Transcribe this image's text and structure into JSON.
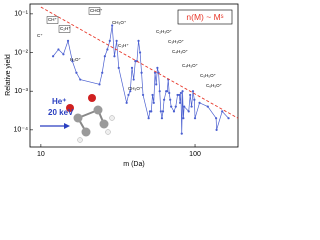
{
  "chart_data": {
    "type": "line",
    "xlabel": "m (Da)",
    "ylabel": "Relative yield",
    "xscale": "log",
    "yscale": "log",
    "xlim": [
      8.5,
      190
    ],
    "ylim": [
      3.6e-05,
      0.18
    ],
    "xticks": [
      10,
      100
    ],
    "yticks": [
      {
        "value": 0.1,
        "label": "10⁻¹"
      },
      {
        "value": 0.01,
        "label": "10⁻²"
      },
      {
        "value": 0.001,
        "label": "10⁻³"
      },
      {
        "value": 0.0001,
        "label": "10⁻⁴"
      }
    ],
    "series": [
      {
        "color": "#4a5fd0",
        "style": "solid-markers",
        "x": [
          12,
          13,
          14,
          15,
          16,
          17,
          18,
          24,
          25,
          26,
          27,
          28,
          29,
          30,
          31,
          32,
          36,
          37,
          38,
          39,
          40,
          41,
          42,
          43,
          44,
          45,
          46,
          50,
          51,
          52,
          53,
          54,
          55,
          56,
          57,
          58,
          59,
          60,
          61,
          62,
          63,
          65,
          66,
          67,
          68,
          69,
          70,
          73,
          75,
          77,
          79,
          80,
          81,
          82,
          83,
          84,
          85,
          91,
          93,
          95,
          97,
          99,
          100,
          107,
          121,
          137,
          138,
          150,
          165
        ],
        "values": [
          0.008,
          0.012,
          0.009,
          0.02,
          0.006,
          0.003,
          0.002,
          0.0015,
          0.003,
          0.008,
          0.012,
          0.02,
          0.05,
          0.008,
          0.02,
          0.004,
          0.0005,
          0.0008,
          0.001,
          0.004,
          0.002,
          0.006,
          0.006,
          0.02,
          0.01,
          0.003,
          0.0008,
          0.0002,
          0.0003,
          0.0003,
          0.0008,
          0.0005,
          0.003,
          0.0015,
          0.004,
          0.003,
          0.001,
          0.0003,
          0.0002,
          0.0003,
          0.0006,
          0.001,
          0.001,
          0.002,
          0.0009,
          0.0006,
          0.0004,
          0.0003,
          0.0004,
          0.0008,
          0.0008,
          0.0005,
          0.0009,
          8e-05,
          0.001,
          0.0002,
          0.0004,
          0.0003,
          0.0008,
          0.0004,
          0.001,
          0.0006,
          0.0002,
          0.0005,
          0.0004,
          0.0002,
          0.0001,
          0.0003,
          0.0002
        ]
      },
      {
        "name": "n(M) ~ Mˢ",
        "color": "#e8392b",
        "style": "dashed",
        "x": [
          10,
          190
        ],
        "values": [
          0.15,
          0.0002
        ]
      }
    ],
    "legend": "upper-right",
    "annotations": [
      "C⁺",
      "CH⁺",
      "H₂O⁺",
      "C₂H⁺",
      "CHO⁺",
      "CH₃O⁺",
      "C₃H⁺",
      "C₂H₃O⁺",
      "C₃H₃O⁺",
      "C₄H₃O⁺",
      "C₄H₅O⁺",
      "C₅H₅O⁺",
      "C₆H₅O⁺",
      "CH₃O⁺",
      "He⁺",
      "20 keV"
    ]
  }
}
